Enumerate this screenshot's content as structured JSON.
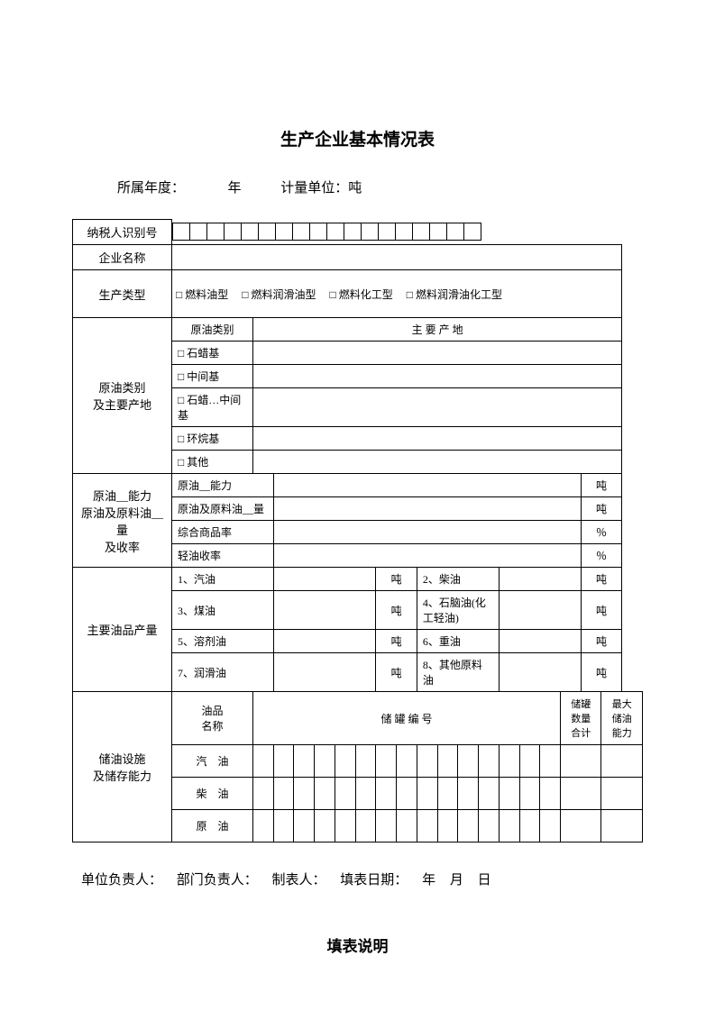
{
  "title": "生产企业基本情况表",
  "meta": {
    "year_label": "所属年度：",
    "year_suffix": "年",
    "unit_label": "计量单位：吨"
  },
  "rows": {
    "tax_id": "纳税人识别号",
    "company_name": "企业名称",
    "prod_type": "生产类型",
    "prod_type_options": [
      "燃料油型",
      "燃料润滑油型",
      "燃料化工型",
      "燃料润滑油化工型"
    ],
    "crude_section": {
      "header": "原油类别\n及主要产地",
      "col_type": "原油类别",
      "col_src": "主 要 产 地",
      "types": [
        "石蜡基",
        "中间基",
        "石蜡…中间基",
        "环烷基",
        "其他"
      ]
    },
    "capacity_section": {
      "header": "原油__能力\n原油及原料油__量\n及收率",
      "rows": [
        {
          "label": "原油__能力",
          "unit": "吨"
        },
        {
          "label": "原油及原料油__量",
          "unit": "吨"
        },
        {
          "label": "综合商品率",
          "unit": "％"
        },
        {
          "label": "轻油收率",
          "unit": "％"
        }
      ]
    },
    "product_section": {
      "header": "主要油品产量",
      "items": [
        {
          "no": "1、",
          "name": "汽油",
          "unit": "吨"
        },
        {
          "no": "2、",
          "name": "柴油",
          "unit": "吨"
        },
        {
          "no": "3、",
          "name": "煤油",
          "unit": "吨"
        },
        {
          "no": "4、",
          "name": "石脑油(化工轻油)",
          "unit": "吨"
        },
        {
          "no": "5、",
          "name": "溶剂油",
          "unit": "吨"
        },
        {
          "no": "6、",
          "name": "重油",
          "unit": "吨"
        },
        {
          "no": "7、",
          "name": "润滑油",
          "unit": "吨"
        },
        {
          "no": "8、",
          "name": "其他原料油",
          "unit": "吨"
        }
      ]
    },
    "storage_section": {
      "header": "储油设施\n及储存能力",
      "cols": {
        "name": "油品\n名称",
        "tank_no": "储 罐 编 号",
        "tank_count": "储罐\n数量\n合计",
        "max_cap": "最大\n储油\n能力"
      },
      "rows": [
        "汽　油",
        "柴　油",
        "原　油"
      ]
    }
  },
  "footer": {
    "a": "单位负责人：",
    "b": "部门负责人：",
    "c": "制表人：",
    "d": "填表日期：",
    "e": "年",
    "f": "月",
    "g": "日"
  },
  "subtitle": "填表说明",
  "style": {
    "checkbox": "□",
    "tax_id_cells": 18,
    "tank_no_cells": 15
  }
}
